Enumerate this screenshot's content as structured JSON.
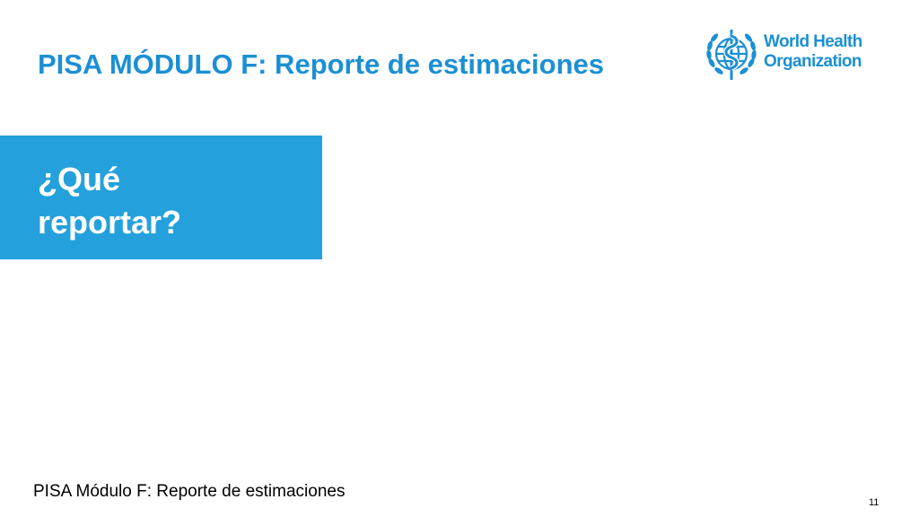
{
  "slide": {
    "title": "PISA MÓDULO F: Reporte de estimaciones"
  },
  "logo": {
    "icon": "who-emblem-icon",
    "line1": "World Health",
    "line2": "Organization",
    "color": "#1c8fd4"
  },
  "section": {
    "heading_line1": "¿Qué",
    "heading_line2": "reportar?",
    "background_color": "#24a1dc"
  },
  "footer": {
    "text": "PISA Módulo F: Reporte de estimaciones",
    "page_number": "11"
  }
}
